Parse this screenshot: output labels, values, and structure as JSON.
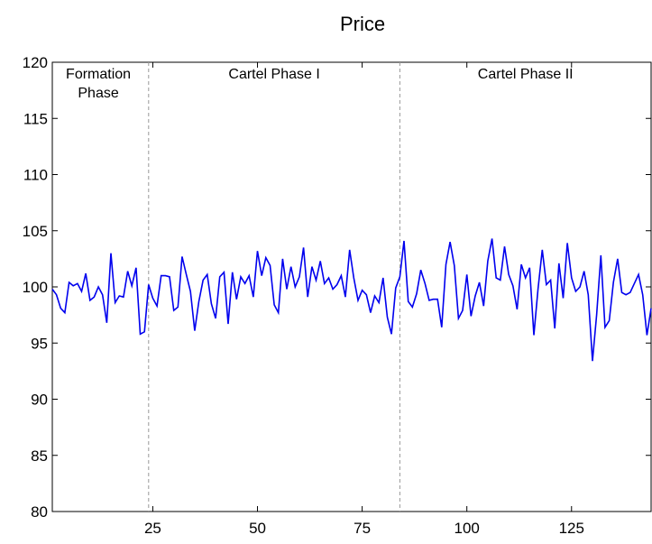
{
  "chart_data": {
    "type": "line",
    "title": "Price",
    "xlabel": "",
    "ylabel": "",
    "xlim": [
      1,
      144
    ],
    "ylim": [
      80,
      120
    ],
    "yticks": [
      80,
      85,
      90,
      95,
      100,
      105,
      110,
      115,
      120
    ],
    "xticks": [
      25,
      50,
      75,
      100,
      125
    ],
    "grid": false,
    "line_color": "#0000ee",
    "separator_color": "#999999",
    "phase_separators": [
      24,
      84
    ],
    "phase_labels": [
      {
        "lines": [
          "Formation",
          "Phase"
        ],
        "x": 12
      },
      {
        "lines": [
          "Cartel Phase I"
        ],
        "x": 54
      },
      {
        "lines": [
          "Cartel Phase II"
        ],
        "x": 114
      }
    ],
    "series": [
      {
        "x": [
          1,
          2,
          3,
          4,
          5,
          6,
          7,
          8,
          9,
          10,
          11,
          12,
          13,
          14,
          15,
          16,
          17,
          18,
          19,
          20,
          21,
          22,
          23,
          24,
          25,
          26,
          27,
          28,
          29,
          30,
          31,
          32,
          33,
          34,
          35,
          36,
          37,
          38,
          39,
          40,
          41,
          42,
          43,
          44,
          45,
          46,
          47,
          48,
          49,
          50,
          51,
          52,
          53,
          54,
          55,
          56,
          57,
          58,
          59,
          60,
          61,
          62,
          63,
          64,
          65,
          66,
          67,
          68,
          69,
          70,
          71,
          72,
          73,
          74,
          75,
          76,
          77,
          78,
          79,
          80,
          81,
          82,
          83,
          84,
          85,
          86,
          87,
          88,
          89,
          90,
          91,
          92,
          93,
          94,
          95,
          96,
          97,
          98,
          99,
          100,
          101,
          102,
          103,
          104,
          105,
          106,
          107,
          108,
          109,
          110,
          111,
          112,
          113,
          114,
          115,
          116,
          117,
          118,
          119,
          120,
          121,
          122,
          123,
          124,
          125,
          126,
          127,
          128,
          129,
          130,
          131,
          132,
          133,
          134,
          135,
          136,
          137,
          138,
          139,
          140,
          141,
          142,
          143,
          144
        ],
        "values": [
          99.8,
          99.3,
          98.1,
          97.7,
          100.4,
          100.1,
          100.3,
          99.6,
          101.2,
          98.8,
          99.1,
          100.0,
          99.3,
          96.8,
          103.0,
          98.6,
          99.2,
          99.1,
          101.4,
          100.1,
          101.7,
          95.8,
          96.0,
          100.2,
          99.0,
          98.3,
          101.0,
          101.0,
          100.9,
          97.9,
          98.2,
          102.7,
          101.1,
          99.6,
          96.1,
          98.7,
          100.6,
          101.1,
          98.5,
          97.2,
          100.9,
          101.3,
          96.7,
          101.3,
          98.9,
          100.9,
          100.3,
          101.0,
          99.1,
          103.2,
          101.0,
          102.6,
          101.9,
          98.4,
          97.7,
          102.5,
          99.8,
          101.8,
          100.0,
          100.9,
          103.5,
          99.1,
          101.8,
          100.6,
          102.3,
          100.3,
          100.8,
          99.8,
          100.2,
          101.0,
          99.1,
          103.3,
          100.8,
          98.8,
          99.7,
          99.3,
          97.7,
          99.2,
          98.6,
          100.8,
          97.3,
          95.8,
          99.9,
          100.9,
          104.1,
          98.7,
          98.2,
          99.4,
          101.5,
          100.3,
          98.8,
          98.9,
          98.9,
          96.4,
          102.0,
          104.0,
          101.9,
          97.2,
          97.9,
          101.1,
          97.4,
          99.2,
          100.4,
          98.3,
          102.3,
          104.3,
          100.8,
          100.6,
          103.6,
          101.1,
          100.1,
          98.0,
          102.0,
          100.8,
          101.7,
          95.7,
          99.8,
          103.3,
          100.2,
          100.6,
          96.3,
          102.1,
          99.0,
          103.9,
          100.8,
          99.6,
          100.0,
          101.4,
          99.3,
          93.4,
          97.5,
          102.8,
          96.4,
          97.0,
          100.4,
          102.5,
          99.5,
          99.3,
          99.5,
          100.3,
          101.1,
          99.3,
          95.7,
          98.1
        ]
      }
    ]
  }
}
